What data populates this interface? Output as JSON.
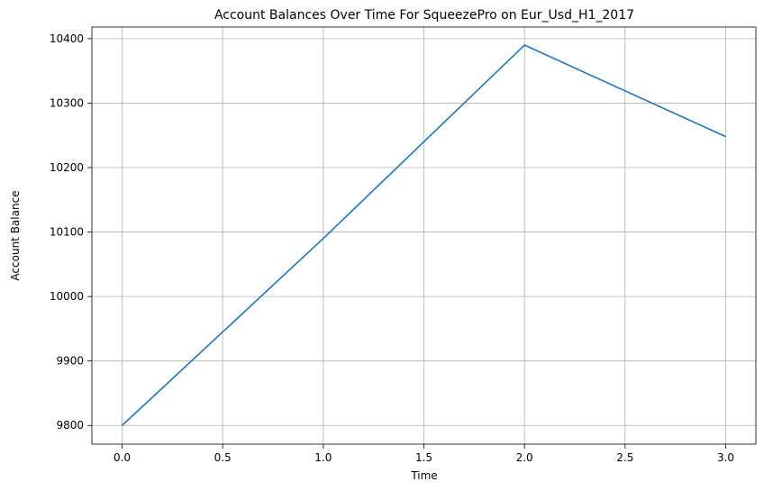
{
  "chart_data": {
    "type": "line",
    "title": "Account Balances Over Time For SqueezePro on Eur_Usd_H1_2017",
    "xlabel": "Time",
    "ylabel": "Account Balance",
    "x": [
      0,
      1,
      2,
      3
    ],
    "series": [
      {
        "values": [
          9800,
          10090,
          10390,
          10248
        ],
        "color": "#1f77b4"
      }
    ],
    "xlim": [
      -0.15,
      3.15
    ],
    "ylim": [
      9771,
      10418
    ],
    "xticks": [
      0.0,
      0.5,
      1.0,
      1.5,
      2.0,
      2.5,
      3.0
    ],
    "xtick_labels": [
      "0.0",
      "0.5",
      "1.0",
      "1.5",
      "2.0",
      "2.5",
      "3.0"
    ],
    "yticks": [
      9800,
      9900,
      10000,
      10100,
      10200,
      10300,
      10400
    ],
    "ytick_labels": [
      "9800",
      "9900",
      "10000",
      "10100",
      "10200",
      "10300",
      "10400"
    ],
    "grid": true,
    "grid_color": "#b0b0b0",
    "legend": false
  }
}
